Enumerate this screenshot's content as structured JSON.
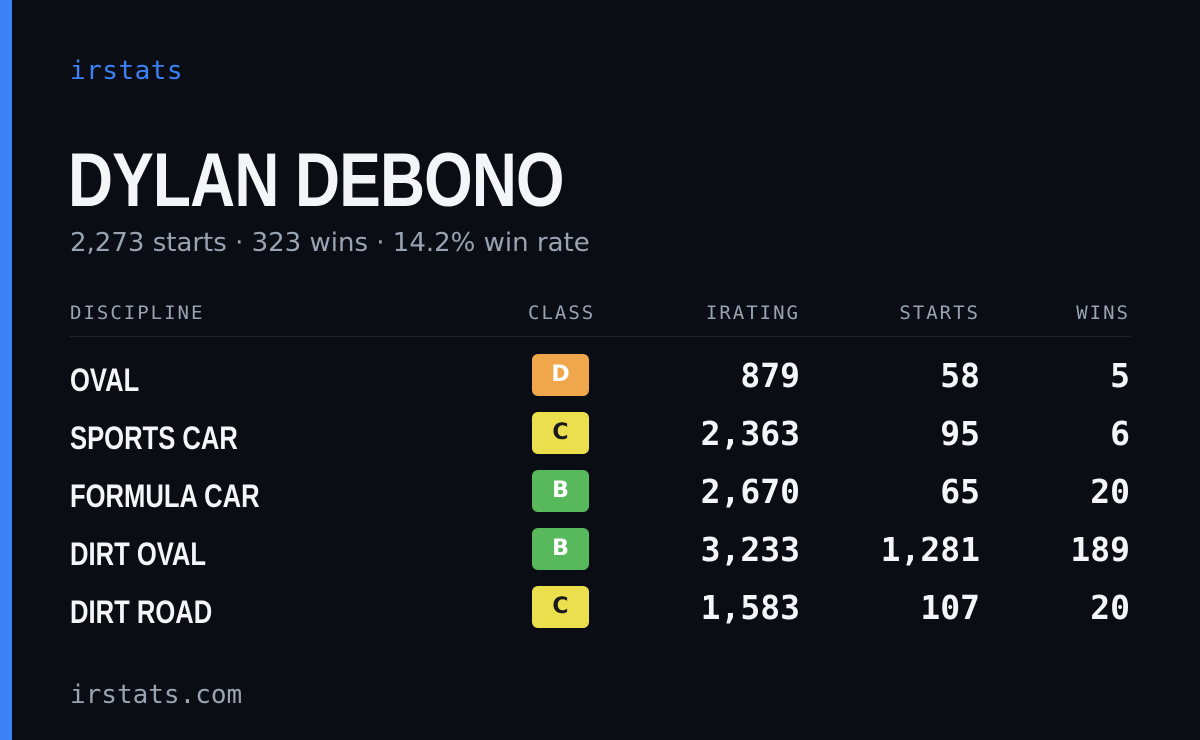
{
  "brand": "irstats",
  "driver_name": "DYLAN DEBONO",
  "summary": "2,273 starts · 323 wins · 14.2% win rate",
  "headers": {
    "discipline": "DISCIPLINE",
    "class": "CLASS",
    "irating": "IRATING",
    "starts": "STARTS",
    "wins": "WINS"
  },
  "rows": [
    {
      "discipline": "OVAL",
      "class": "D",
      "irating": "879",
      "starts": "58",
      "wins": "5"
    },
    {
      "discipline": "SPORTS CAR",
      "class": "C",
      "irating": "2,363",
      "starts": "95",
      "wins": "6"
    },
    {
      "discipline": "FORMULA CAR",
      "class": "B",
      "irating": "2,670",
      "starts": "65",
      "wins": "20"
    },
    {
      "discipline": "DIRT OVAL",
      "class": "B",
      "irating": "3,233",
      "starts": "1,281",
      "wins": "189"
    },
    {
      "discipline": "DIRT ROAD",
      "class": "C",
      "irating": "1,583",
      "starts": "107",
      "wins": "20"
    }
  ],
  "footer": "irstats.com",
  "colors": {
    "accent": "#3b82f6",
    "class_D": "#f0a64b",
    "class_C": "#ecdf4e",
    "class_B": "#58b85c",
    "badge_text": "#ffffff",
    "badge_text_C": "#1a1a1a"
  }
}
